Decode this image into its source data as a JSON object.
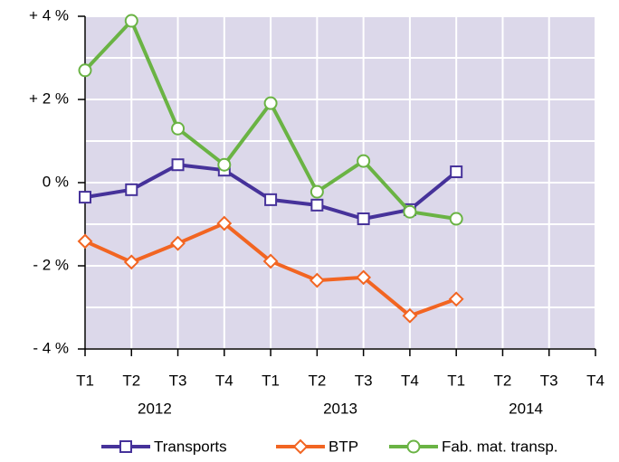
{
  "chart_data": {
    "type": "line",
    "categories": [
      "T1",
      "T2",
      "T3",
      "T4",
      "T1",
      "T2",
      "T3",
      "T4",
      "T1",
      "T2",
      "T3",
      "T4"
    ],
    "groups": [
      {
        "label": "2012",
        "from": 0,
        "to": 3
      },
      {
        "label": "2013",
        "from": 4,
        "to": 7
      },
      {
        "label": "2014",
        "from": 8,
        "to": 11
      }
    ],
    "series": [
      {
        "name": "Transports",
        "color": "#46329a",
        "marker": "square",
        "values": [
          -0.35,
          -0.17,
          0.43,
          0.3,
          -0.41,
          -0.54,
          -0.87,
          -0.65,
          0.26,
          null,
          null,
          null
        ]
      },
      {
        "name": "BTP",
        "color": "#f26522",
        "marker": "diamond",
        "values": [
          -1.41,
          -1.91,
          -1.46,
          -0.98,
          -1.89,
          -2.35,
          -2.28,
          -3.2,
          -2.8,
          null,
          null,
          null
        ]
      },
      {
        "name": "Fab. mat. transp.",
        "color": "#6ab344",
        "marker": "circle",
        "values": [
          2.7,
          3.89,
          1.3,
          0.43,
          1.91,
          -0.22,
          0.52,
          -0.7,
          -0.87,
          null,
          null,
          null
        ]
      }
    ],
    "ylim": [
      -4,
      4
    ],
    "yticks": [
      {
        "value": 4,
        "label": "+ 4 %"
      },
      {
        "value": 2,
        "label": "+ 2 %"
      },
      {
        "value": 0,
        "label": "0 %"
      },
      {
        "value": -2,
        "label": "- 2 %"
      },
      {
        "value": -4,
        "label": "- 4 %"
      }
    ],
    "minor_yticks": [
      3,
      1,
      -1,
      -3
    ],
    "grid": true,
    "legend": "bottom"
  }
}
